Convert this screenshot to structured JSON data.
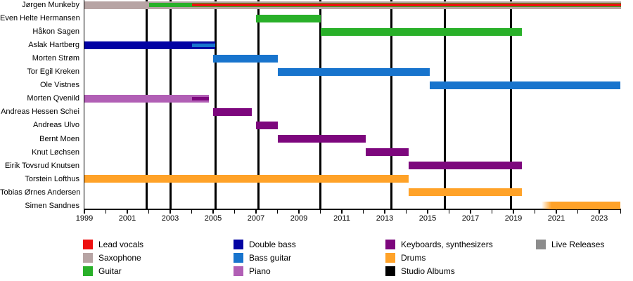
{
  "chart_data": {
    "type": "timeline",
    "title": "",
    "x_axis": {
      "min": 1999,
      "max": 2024,
      "minor_tick_every_years": 1,
      "label_every_years": 2,
      "tick_labels": [
        "1999",
        "2001",
        "2003",
        "2005",
        "2007",
        "2009",
        "2011",
        "2013",
        "2015",
        "2017",
        "2019",
        "2021",
        "2023"
      ]
    },
    "colors": {
      "lead_vocals": "#ee1010",
      "saxophone": "#b7a4a4",
      "guitar": "#29b029",
      "double_bass": "#0303a3",
      "bass_guitar": "#1874cd",
      "piano": "#b15fb5",
      "keyboards": "#7d077d",
      "drums": "#ffa228",
      "studio_albums": "#000000",
      "live_releases": "#8c8c8c",
      "axis": "#000000",
      "background": "#ffffff"
    },
    "rows": [
      {
        "name": "Jørgen Munkeby",
        "bars": [
          {
            "role": "saxophone",
            "start": 1999.0,
            "end": 2024.0
          },
          {
            "role": "guitar",
            "start": 2002.0,
            "end": 2024.0
          },
          {
            "role": "lead_vocals",
            "start": 2004.0,
            "end": 2024.0
          }
        ]
      },
      {
        "name": "Even Helte Hermansen",
        "bars": [
          {
            "role": "guitar",
            "start": 2007.0,
            "end": 2010.0
          }
        ]
      },
      {
        "name": "Håkon Sagen",
        "bars": [
          {
            "role": "guitar",
            "start": 2010.0,
            "end": 2019.4
          }
        ]
      },
      {
        "name": "Aslak Hartberg",
        "bars": [
          {
            "role": "double_bass",
            "start": 1999.0,
            "end": 2005.1
          },
          {
            "role": "bass_guitar",
            "start": 2004.0,
            "end": 2005.1
          }
        ]
      },
      {
        "name": "Morten Strøm",
        "bars": [
          {
            "role": "bass_guitar",
            "start": 2005.0,
            "end": 2008.0
          }
        ]
      },
      {
        "name": "Tor Egil Kreken",
        "bars": [
          {
            "role": "bass_guitar",
            "start": 2008.0,
            "end": 2015.1
          }
        ]
      },
      {
        "name": "Ole Vistnes",
        "bars": [
          {
            "role": "bass_guitar",
            "start": 2015.1,
            "end": 2024.0
          }
        ]
      },
      {
        "name": "Morten Qvenild",
        "bars": [
          {
            "role": "piano",
            "start": 1999.0,
            "end": 2004.8
          },
          {
            "role": "keyboards",
            "start": 2004.0,
            "end": 2004.8
          }
        ]
      },
      {
        "name": "Andreas Hessen Schei",
        "bars": [
          {
            "role": "keyboards",
            "start": 2005.0,
            "end": 2006.8
          }
        ]
      },
      {
        "name": "Andreas Ulvo",
        "bars": [
          {
            "role": "keyboards",
            "start": 2007.0,
            "end": 2008.0
          }
        ]
      },
      {
        "name": "Bernt Moen",
        "bars": [
          {
            "role": "keyboards",
            "start": 2008.0,
            "end": 2012.1
          }
        ]
      },
      {
        "name": "Knut Løchsen",
        "bars": [
          {
            "role": "keyboards",
            "start": 2012.1,
            "end": 2014.1
          }
        ]
      },
      {
        "name": "Eirik Tovsrud Knutsen",
        "bars": [
          {
            "role": "keyboards",
            "start": 2014.1,
            "end": 2019.4
          }
        ]
      },
      {
        "name": "Torstein Lofthus",
        "bars": [
          {
            "role": "drums",
            "start": 1999.0,
            "end": 2014.1
          }
        ]
      },
      {
        "name": "Tobias Ørnes Andersen",
        "bars": [
          {
            "role": "drums",
            "start": 2014.1,
            "end": 2019.4
          }
        ]
      },
      {
        "name": "Simen Sandnes",
        "bars": [
          {
            "role": "drums",
            "start": 2020.3,
            "end": 2024.0,
            "fade_in": true
          }
        ]
      }
    ],
    "albums": {
      "legend_label": "Studio Albums",
      "years": [
        2001.9,
        2003.0,
        2005.1,
        2007.1,
        2010.0,
        2013.3,
        2015.8,
        2018.9
      ]
    },
    "legend": {
      "position": "bottom",
      "columns": [
        [
          {
            "label": "Lead vocals",
            "color_key": "lead_vocals"
          },
          {
            "label": "Saxophone",
            "color_key": "saxophone"
          },
          {
            "label": "Guitar",
            "color_key": "guitar"
          }
        ],
        [
          {
            "label": "Double bass",
            "color_key": "double_bass"
          },
          {
            "label": "Bass guitar",
            "color_key": "bass_guitar"
          },
          {
            "label": "Piano",
            "color_key": "piano"
          }
        ],
        [
          {
            "label": "Keyboards, synthesizers",
            "color_key": "keyboards"
          },
          {
            "label": "Drums",
            "color_key": "drums"
          },
          {
            "label": "Studio Albums",
            "color_key": "studio_albums"
          }
        ],
        [
          {
            "label": "Live Releases",
            "color_key": "live_releases"
          }
        ]
      ]
    }
  }
}
